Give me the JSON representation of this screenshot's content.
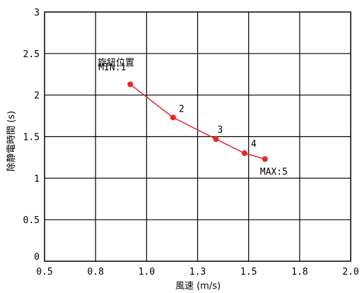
{
  "chart_data": {
    "type": "line",
    "xlabel": "風速 (m/s)",
    "ylabel": "除静電時間 (s)",
    "xlim": [
      0.5,
      2.0
    ],
    "ylim": [
      0,
      3
    ],
    "x_tick_labels": [
      "0.5",
      "0.8",
      "1.0",
      "1.3",
      "1.5",
      "1.8",
      "2.0"
    ],
    "y_tick_labels": [
      "0",
      "0.5",
      "1",
      "1.5",
      "2",
      "2.5",
      "3"
    ],
    "grid": true,
    "series_color": "#e8262a",
    "annotation": "旋鈕位置",
    "series": [
      {
        "points": [
          {
            "x": 0.92,
            "y": 2.13,
            "label": "MIN:1"
          },
          {
            "x": 1.13,
            "y": 1.73,
            "label": "2"
          },
          {
            "x": 1.34,
            "y": 1.47,
            "label": "3"
          },
          {
            "x": 1.48,
            "y": 1.3,
            "label": "4"
          },
          {
            "x": 1.58,
            "y": 1.23,
            "label": "MAX:5"
          }
        ]
      }
    ]
  }
}
